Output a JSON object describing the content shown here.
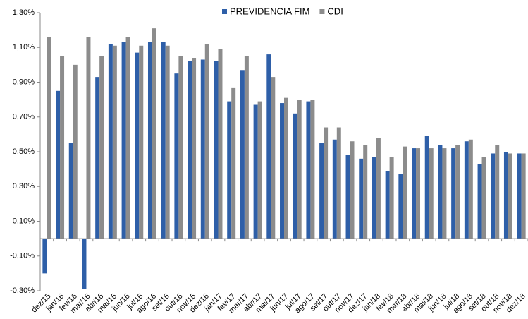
{
  "chart_data": {
    "type": "bar",
    "categories": [
      "dez/15",
      "jan/16",
      "fev/16",
      "mar/16",
      "abr/16",
      "mai/16",
      "jun/16",
      "jul/16",
      "ago/16",
      "set/16",
      "out/16",
      "nov/16",
      "dez/16",
      "jan/17",
      "fev/17",
      "mar/17",
      "abr/17",
      "mai/17",
      "jun/17",
      "jul/17",
      "ago/17",
      "set/17",
      "out/17",
      "nov/17",
      "dez/17",
      "jan/18",
      "fev/18",
      "mar/18",
      "abr/18",
      "mai/18",
      "jun/18",
      "jul/18",
      "ago/18",
      "set/18",
      "out/18",
      "nov/18",
      "dez/18"
    ],
    "series": [
      {
        "name": "PREVIDENCIA FIM",
        "color": "#2e5fa8",
        "values": [
          -0.2,
          0.85,
          0.55,
          -0.29,
          0.93,
          1.12,
          1.13,
          1.07,
          1.13,
          1.13,
          0.95,
          1.02,
          1.03,
          1.02,
          0.79,
          0.97,
          0.77,
          1.06,
          0.78,
          0.72,
          0.79,
          0.55,
          0.57,
          0.48,
          0.46,
          0.47,
          0.39,
          0.37,
          0.52,
          0.59,
          0.54,
          0.52,
          0.56,
          0.43,
          0.49,
          0.5,
          0.49
        ]
      },
      {
        "name": "CDI",
        "color": "#8c8c8c",
        "values": [
          1.16,
          1.05,
          1.0,
          1.16,
          1.05,
          1.11,
          1.16,
          1.11,
          1.21,
          1.11,
          1.05,
          1.04,
          1.12,
          1.09,
          0.87,
          1.05,
          0.79,
          0.93,
          0.81,
          0.8,
          0.8,
          0.64,
          0.64,
          0.56,
          0.54,
          0.58,
          0.47,
          0.53,
          0.52,
          0.52,
          0.52,
          0.54,
          0.57,
          0.47,
          0.54,
          0.49,
          0.49
        ]
      }
    ],
    "ylim": [
      -0.3,
      1.3
    ],
    "yticks": [
      {
        "value": -0.3,
        "label": "-0,30%"
      },
      {
        "value": -0.1,
        "label": "-0,10%"
      },
      {
        "value": 0.1,
        "label": "0,10%"
      },
      {
        "value": 0.3,
        "label": "0,30%"
      },
      {
        "value": 0.5,
        "label": "0,50%"
      },
      {
        "value": 0.7,
        "label": "0,70%"
      },
      {
        "value": 0.9,
        "label": "0,90%"
      },
      {
        "value": 1.1,
        "label": "1,10%"
      },
      {
        "value": 1.3,
        "label": "1,30%"
      }
    ],
    "legend": "top",
    "grid": false
  }
}
